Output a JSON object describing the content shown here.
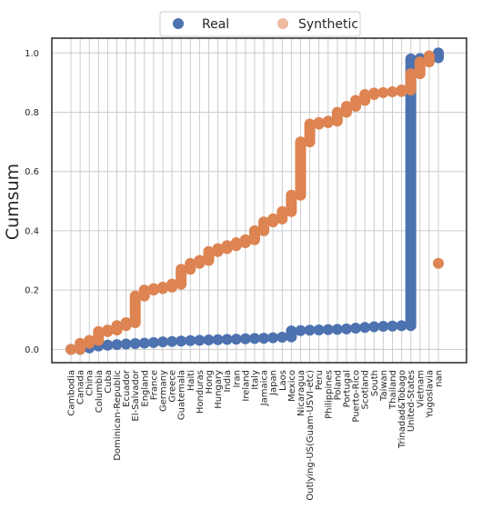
{
  "chart_data": {
    "type": "scatter",
    "ylabel": "Cumsum",
    "xlabel": "",
    "ylim": [
      -0.045,
      1.05
    ],
    "yticks": [
      "0.0",
      "0.2",
      "0.4",
      "0.6",
      "0.8",
      "1.0"
    ],
    "grid": true,
    "legend": {
      "placement": "top-center",
      "entries": [
        "Real",
        "Synthetic"
      ]
    },
    "categories": [
      "Cambodia",
      "Canada",
      "China",
      "Columbia",
      "Cuba",
      "Dominican-Republic",
      "Ecuador",
      "El-Salvador",
      "England",
      "France",
      "Germany",
      "Greece",
      "Guatemala",
      "Haiti",
      "Honduras",
      "Hong",
      "Hungary",
      "India",
      "Iran",
      "Ireland",
      "Italy",
      "Jamaica",
      "Japan",
      "Laos",
      "Mexico",
      "Nicaragua",
      "Outlying-US(Guam-USVI-etc)",
      "Peru",
      "Philippines",
      "Poland",
      "Portugal",
      "Puerto-Rico",
      "Scotland",
      "South",
      "Taiwan",
      "Thailand",
      "Trinadad&Tobago",
      "United-States",
      "Vietnam",
      "Yugoslavia",
      "nan"
    ],
    "series": [
      {
        "name": "Real",
        "color": "#4c72b0",
        "values": [
          [
            0.0,
            0.0
          ],
          [
            0.0,
            0.005
          ],
          [
            0.005,
            0.01
          ],
          [
            0.01,
            0.013
          ],
          [
            0.013,
            0.015
          ],
          [
            0.015,
            0.017
          ],
          [
            0.017,
            0.019
          ],
          [
            0.019,
            0.02
          ],
          [
            0.02,
            0.022
          ],
          [
            0.022,
            0.024
          ],
          [
            0.024,
            0.026
          ],
          [
            0.026,
            0.027
          ],
          [
            0.027,
            0.029
          ],
          [
            0.029,
            0.03
          ],
          [
            0.03,
            0.031
          ],
          [
            0.031,
            0.032
          ],
          [
            0.032,
            0.033
          ],
          [
            0.033,
            0.034
          ],
          [
            0.034,
            0.035
          ],
          [
            0.035,
            0.036
          ],
          [
            0.036,
            0.037
          ],
          [
            0.037,
            0.038
          ],
          [
            0.038,
            0.04
          ],
          [
            0.04,
            0.042
          ],
          [
            0.042,
            0.062
          ],
          [
            0.062,
            0.064
          ],
          [
            0.064,
            0.065
          ],
          [
            0.065,
            0.066
          ],
          [
            0.066,
            0.067
          ],
          [
            0.067,
            0.068
          ],
          [
            0.068,
            0.07
          ],
          [
            0.07,
            0.073
          ],
          [
            0.073,
            0.075
          ],
          [
            0.075,
            0.077
          ],
          [
            0.077,
            0.078
          ],
          [
            0.078,
            0.079
          ],
          [
            0.079,
            0.08
          ],
          [
            0.08,
            0.98
          ],
          [
            0.98,
            0.982
          ],
          [
            0.982,
            0.984
          ],
          [
            0.984,
            1.0
          ]
        ]
      },
      {
        "name": "Synthetic",
        "color": "#dd8452",
        "values": [
          [
            0.0,
            0.0
          ],
          [
            0.0,
            0.02
          ],
          [
            0.02,
            0.03
          ],
          [
            0.03,
            0.06
          ],
          [
            0.06,
            0.065
          ],
          [
            0.065,
            0.08
          ],
          [
            0.08,
            0.09
          ],
          [
            0.09,
            0.18
          ],
          [
            0.18,
            0.2
          ],
          [
            0.2,
            0.205
          ],
          [
            0.205,
            0.21
          ],
          [
            0.21,
            0.22
          ],
          [
            0.22,
            0.27
          ],
          [
            0.27,
            0.29
          ],
          [
            0.29,
            0.3
          ],
          [
            0.3,
            0.33
          ],
          [
            0.33,
            0.34
          ],
          [
            0.34,
            0.35
          ],
          [
            0.35,
            0.36
          ],
          [
            0.36,
            0.37
          ],
          [
            0.37,
            0.4
          ],
          [
            0.4,
            0.43
          ],
          [
            0.43,
            0.44
          ],
          [
            0.44,
            0.465
          ],
          [
            0.465,
            0.52
          ],
          [
            0.52,
            0.7
          ],
          [
            0.7,
            0.76
          ],
          [
            0.76,
            0.765
          ],
          [
            0.765,
            0.77
          ],
          [
            0.77,
            0.8
          ],
          [
            0.8,
            0.82
          ],
          [
            0.82,
            0.84
          ],
          [
            0.84,
            0.86
          ],
          [
            0.86,
            0.865
          ],
          [
            0.865,
            0.868
          ],
          [
            0.868,
            0.87
          ],
          [
            0.87,
            0.875
          ],
          [
            0.875,
            0.93
          ],
          [
            0.93,
            0.97
          ],
          [
            0.97,
            0.99
          ],
          [
            0.29,
            0.29
          ]
        ]
      }
    ]
  }
}
